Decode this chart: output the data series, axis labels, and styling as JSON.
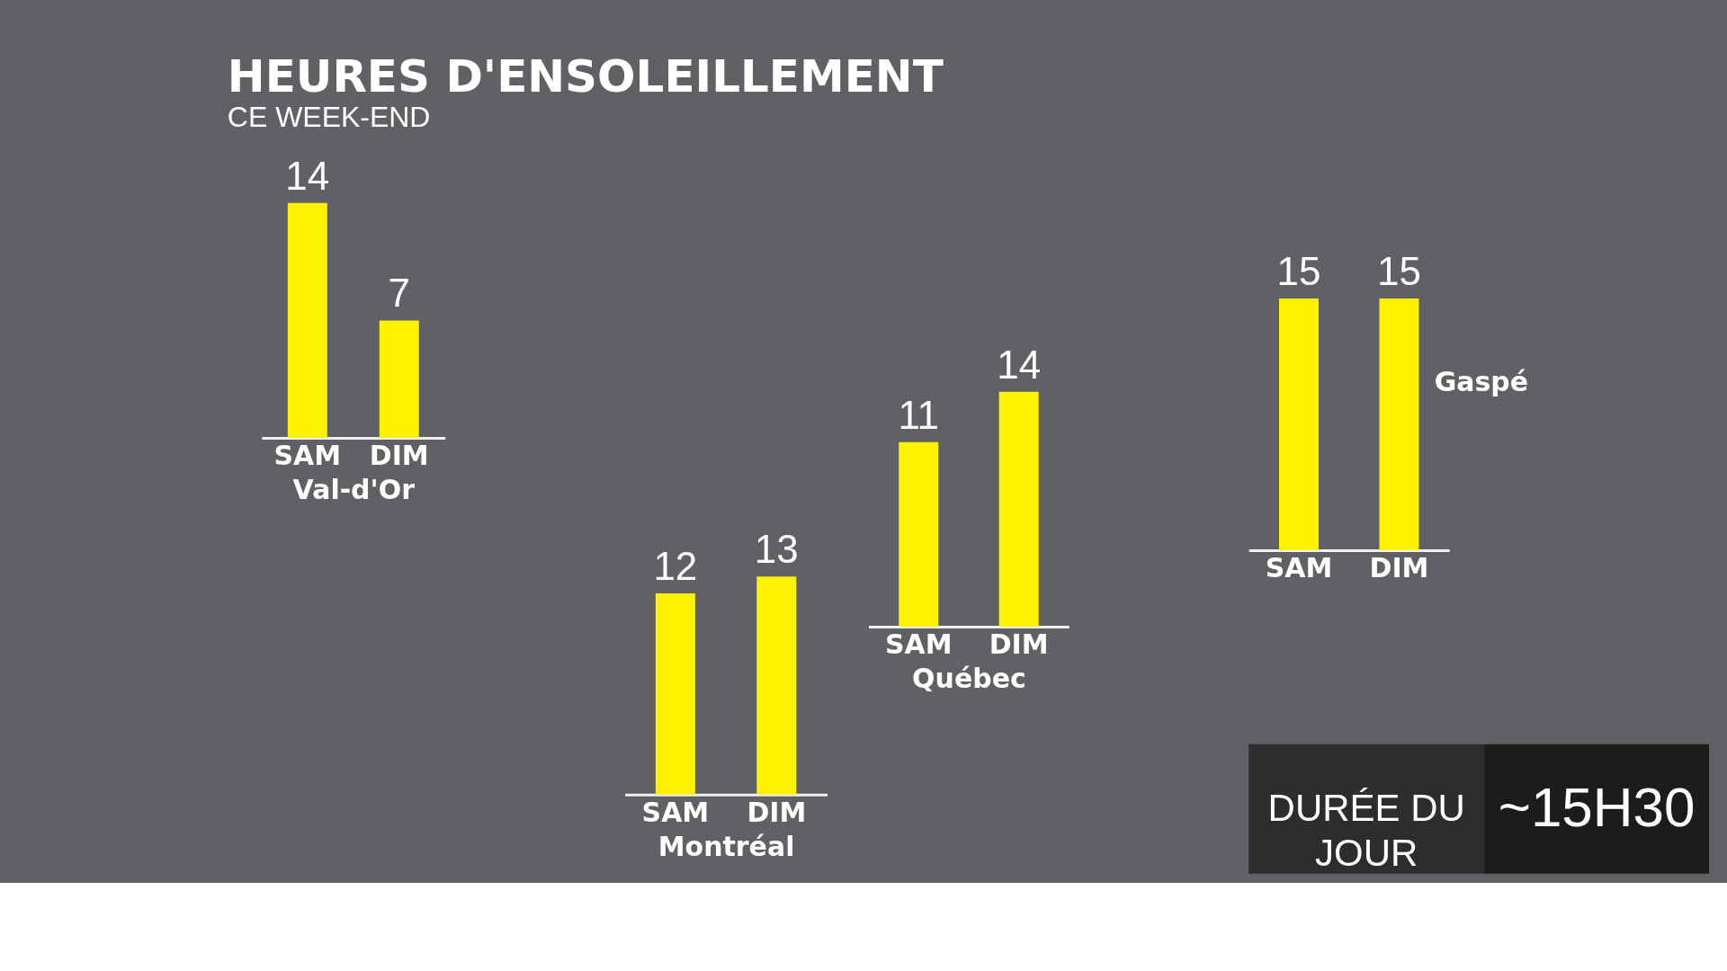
{
  "chart_data": [
    {
      "type": "bar",
      "title": "HEURES D'ENSOLEILLEMENT",
      "subtitle": "CE WEEK-END",
      "xlabel": "Val-d'Or",
      "categories": [
        "SAM",
        "DIM"
      ],
      "values": [
        14,
        7
      ],
      "color": "#fff200",
      "data_labels": true
    },
    {
      "type": "bar",
      "xlabel": "Montréal",
      "categories": [
        "SAM",
        "DIM"
      ],
      "values": [
        12,
        13
      ],
      "color": "#fff200",
      "data_labels": true
    },
    {
      "type": "bar",
      "xlabel": "Québec",
      "categories": [
        "SAM",
        "DIM"
      ],
      "values": [
        11,
        14
      ],
      "color": "#fff200",
      "data_labels": true
    },
    {
      "type": "bar",
      "xlabel": "Gaspé",
      "categories": [
        "SAM",
        "DIM"
      ],
      "values": [
        15,
        15
      ],
      "color": "#fff200",
      "data_labels": true
    },
    {
      "type": "other",
      "title": "DURÉE DU JOUR",
      "annotations": [
        "~15H30"
      ]
    }
  ]
}
